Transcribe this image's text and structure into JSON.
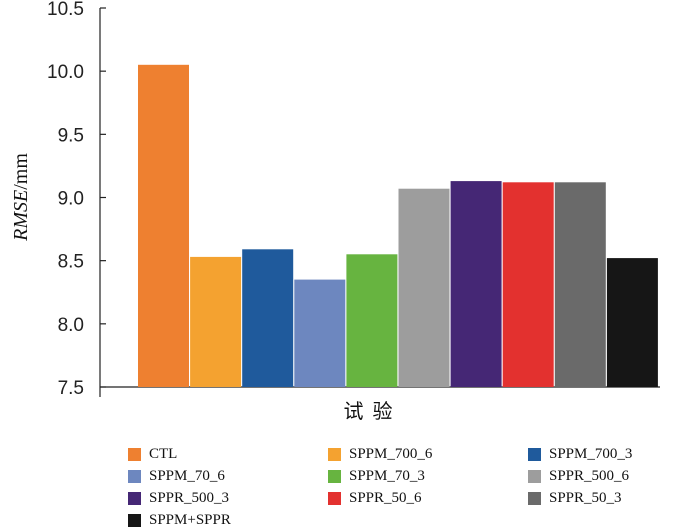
{
  "chart_data": {
    "type": "bar",
    "title": "",
    "xlabel": "试 验",
    "ylabel_italic": "RMSE",
    "ylabel_unit": "/mm",
    "ylim": [
      7.5,
      10.5
    ],
    "yticks": [
      "7.5",
      "8.0",
      "8.5",
      "9.0",
      "9.5",
      "10.0",
      "10.5"
    ],
    "ytick_values": [
      7.5,
      8.0,
      8.5,
      9.0,
      9.5,
      10.0,
      10.5
    ],
    "grid": false,
    "legend_position": "bottom",
    "categories": [
      "CTL",
      "SPPM_700_6",
      "SPPM_700_3",
      "SPPM_70_6",
      "SPPM_70_3",
      "SPPR_500_6",
      "SPPR_500_3",
      "SPPR_50_6",
      "SPPR_50_3",
      "SPPM+SPPR"
    ],
    "values": [
      10.05,
      8.53,
      8.59,
      8.35,
      8.55,
      9.07,
      9.13,
      9.12,
      9.12,
      8.52
    ],
    "colors": [
      "#ee8030",
      "#f4a230",
      "#1f5a9c",
      "#6d87bf",
      "#67b440",
      "#9d9d9d",
      "#452775",
      "#e3312f",
      "#6a6a6a",
      "#161616"
    ]
  }
}
